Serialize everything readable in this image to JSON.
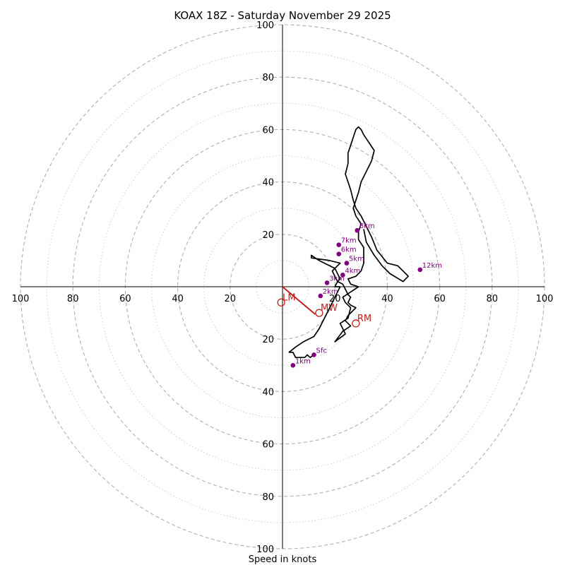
{
  "chart_data": {
    "type": "line",
    "title": "KOAX 18Z - Saturday November 29 2025",
    "xlabel": "Speed in knots",
    "ylabel": "",
    "xlim": [
      -100,
      100
    ],
    "ylim": [
      -100,
      100
    ],
    "ring_values": [
      20,
      40,
      60,
      80,
      100
    ],
    "minor_ring_values": [
      10,
      30,
      50,
      70,
      90
    ],
    "tick_labels": [
      "100",
      "80",
      "60",
      "40",
      "20",
      "20",
      "40",
      "60",
      "80",
      "100"
    ],
    "y_tick_labels": [
      "100",
      "80",
      "60",
      "40",
      "20",
      "20",
      "40",
      "60",
      "80",
      "100"
    ],
    "colors": {
      "trace": "#000000",
      "height_marker": "#800080",
      "motion": "#c0201e",
      "ring": "#b0b0b0"
    },
    "hodograph_trace": {
      "u": [
        12,
        10.5,
        9.5,
        8.5,
        5,
        4,
        2.5,
        5,
        8,
        12,
        14,
        16,
        18,
        20,
        21,
        22,
        20,
        21,
        22,
        21,
        20,
        16,
        14,
        11,
        11,
        18,
        22,
        19,
        20,
        21,
        23,
        25,
        26,
        25,
        26,
        28,
        26,
        25,
        24,
        26,
        23,
        20,
        24,
        22,
        25,
        26,
        24,
        23,
        26,
        29,
        26,
        25,
        28,
        30,
        31,
        31,
        31,
        29,
        29,
        30,
        28,
        27,
        28,
        29,
        30,
        32,
        34,
        35,
        33,
        31,
        30,
        29,
        28,
        27,
        26,
        25,
        25,
        24,
        25,
        26,
        27,
        28,
        30,
        32,
        34,
        36,
        40,
        44,
        47,
        48,
        46,
        41,
        38,
        35,
        32,
        31
      ],
      "v": [
        -26,
        -27,
        -26,
        -27,
        -27,
        -25,
        -25,
        -23,
        -21,
        -19,
        -16,
        -12,
        -8,
        -4,
        -2,
        0,
        0,
        2,
        3,
        5,
        7,
        9,
        10,
        12,
        11,
        10,
        9,
        6,
        4,
        2,
        1,
        -3,
        -4,
        -6,
        -7,
        -8,
        -10,
        -11,
        -13,
        -15,
        -17,
        -21,
        -18,
        -14,
        -12,
        -8,
        -6,
        -4,
        -2,
        0,
        1,
        3,
        4,
        6,
        9,
        12,
        15,
        18,
        21,
        24,
        27,
        30,
        33,
        36,
        40,
        44,
        48,
        52,
        55,
        58,
        60,
        61,
        60,
        57,
        54,
        51,
        47,
        43,
        40,
        37,
        33,
        30,
        27,
        23,
        19,
        14,
        9,
        8,
        5,
        4,
        2,
        5,
        8,
        12,
        17,
        22
      ]
    },
    "height_markers": [
      {
        "label": "Sfc",
        "u": 12,
        "v": -26
      },
      {
        "label": "1km",
        "u": 4,
        "v": -30
      },
      {
        "label": "2km",
        "u": 14.5,
        "v": -3.5
      },
      {
        "label": "3km",
        "u": 17,
        "v": 1.5
      },
      {
        "label": "4km",
        "u": 23,
        "v": 4.5
      },
      {
        "label": "5km",
        "u": 24.5,
        "v": 9
      },
      {
        "label": "6km",
        "u": 21.5,
        "v": 12.5
      },
      {
        "label": "7km",
        "u": 21.5,
        "v": 16
      },
      {
        "label": "8km",
        "u": 28.5,
        "v": 21.5
      },
      {
        "label": "12km",
        "u": 52.5,
        "v": 6.5
      }
    ],
    "storm_motion": {
      "mean_wind_line": {
        "u": [
          0,
          12.5
        ],
        "v": [
          0,
          -10.5
        ]
      },
      "markers": [
        {
          "label": "LM",
          "u": -0.5,
          "v": -6
        },
        {
          "label": "MW",
          "u": 14,
          "v": -10
        },
        {
          "label": "RM",
          "u": 28,
          "v": -14
        }
      ]
    }
  }
}
